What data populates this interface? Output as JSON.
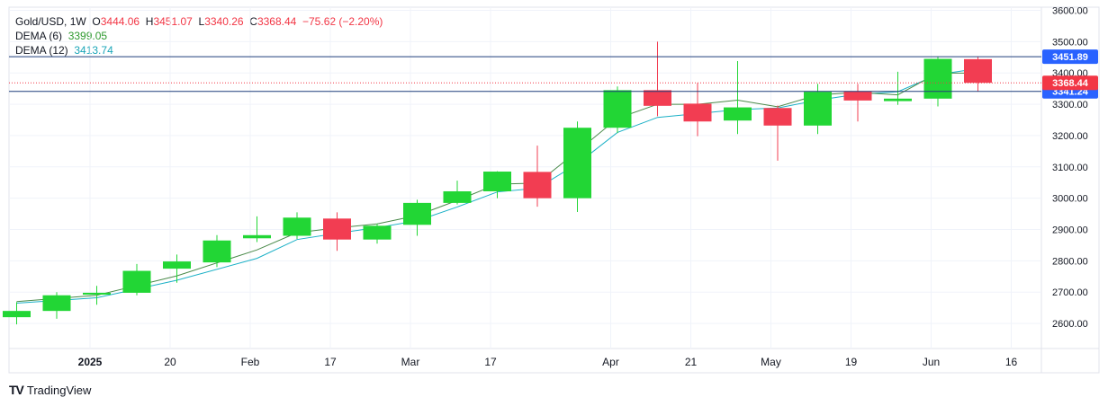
{
  "legend": {
    "symbol": "Gold/USD",
    "interval": "1W",
    "o_label": "O",
    "o_value": "3444.06",
    "h_label": "H",
    "h_value": "3451.07",
    "l_label": "L",
    "l_value": "3340.26",
    "c_label": "C",
    "c_value": "3368.44",
    "change": "−75.62 (−2.20%)",
    "dema6_label": "DEMA (6)",
    "dema6_value": "3399.05",
    "dema12_label": "DEMA (12)",
    "dema12_value": "3413.74"
  },
  "brand": {
    "name": "TradingView",
    "logo_text": "TV"
  },
  "colors": {
    "up": "#22d635",
    "down": "#f23d52",
    "dema6": "#4a8a4a",
    "dema12": "#1ab0c6",
    "hline": "#1e3f7a",
    "label_blue": "#2962ff",
    "label_red": "#f23645"
  },
  "chart_data": {
    "type": "candlestick",
    "y_axis": {
      "ticks": [
        "2600.00",
        "2700.00",
        "2800.00",
        "2900.00",
        "3000.00",
        "3100.00",
        "3200.00",
        "3300.00",
        "3400.00",
        "3500.00",
        "3600.00"
      ],
      "range": [
        2520,
        3610
      ]
    },
    "x_axis": {
      "ticks": [
        "2025",
        "20",
        "Feb",
        "17",
        "Mar",
        "17",
        "Apr",
        "21",
        "May",
        "19",
        "Jun",
        "16"
      ],
      "tick_weeks": [
        1,
        3,
        5,
        7,
        9,
        11,
        14,
        16,
        18,
        20,
        22,
        24
      ],
      "weeks_shown": [
        0,
        25.6
      ]
    },
    "candles": [
      {
        "week": 0,
        "o": 2620,
        "h": 2668,
        "l": 2597,
        "c": 2640
      },
      {
        "week": 1,
        "o": 2640,
        "h": 2700,
        "l": 2615,
        "c": 2690
      },
      {
        "week": 2,
        "o": 2692,
        "h": 2720,
        "l": 2660,
        "c": 2698
      },
      {
        "week": 3,
        "o": 2698,
        "h": 2790,
        "l": 2690,
        "c": 2768
      },
      {
        "week": 4,
        "o": 2775,
        "h": 2820,
        "l": 2730,
        "c": 2798
      },
      {
        "week": 5,
        "o": 2795,
        "h": 2882,
        "l": 2780,
        "c": 2865
      },
      {
        "week": 6,
        "o": 2872,
        "h": 2942,
        "l": 2860,
        "c": 2882
      },
      {
        "week": 7,
        "o": 2880,
        "h": 2955,
        "l": 2870,
        "c": 2938
      },
      {
        "week": 8,
        "o": 2935,
        "h": 2955,
        "l": 2832,
        "c": 2868
      },
      {
        "week": 9,
        "o": 2868,
        "h": 2918,
        "l": 2855,
        "c": 2912
      },
      {
        "week": 10,
        "o": 2915,
        "h": 2995,
        "l": 2880,
        "c": 2985
      },
      {
        "week": 11,
        "o": 2985,
        "h": 3056,
        "l": 2980,
        "c": 3022
      },
      {
        "week": 12,
        "o": 3022,
        "h": 3086,
        "l": 3000,
        "c": 3085
      },
      {
        "week": 13,
        "o": 3084,
        "h": 3168,
        "l": 2973,
        "c": 3000
      },
      {
        "week": 14,
        "o": 3000,
        "h": 3245,
        "l": 2956,
        "c": 3225
      },
      {
        "week": 15,
        "o": 3225,
        "h": 3357,
        "l": 3208,
        "c": 3345
      },
      {
        "week": 16,
        "o": 3345,
        "h": 3500,
        "l": 3262,
        "c": 3295
      },
      {
        "week": 17,
        "o": 3302,
        "h": 3368,
        "l": 3198,
        "c": 3245
      },
      {
        "week": 18,
        "o": 3248,
        "h": 3438,
        "l": 3205,
        "c": 3290
      },
      {
        "week": 19,
        "o": 3288,
        "h": 3296,
        "l": 3120,
        "c": 3232
      },
      {
        "week": 20,
        "o": 3232,
        "h": 3365,
        "l": 3205,
        "c": 3340
      },
      {
        "week": 21,
        "o": 3342,
        "h": 3365,
        "l": 3245,
        "c": 3312
      },
      {
        "week": 22,
        "o": 3310,
        "h": 3404,
        "l": 3298,
        "c": 3318
      },
      {
        "week": 23,
        "o": 3318,
        "h": 3452,
        "l": 3293,
        "c": 3445
      },
      {
        "week": 24,
        "o": 3444.06,
        "h": 3451.07,
        "l": 3340.26,
        "c": 3368.44
      }
    ],
    "dema6": [
      [
        0,
        2670
      ],
      [
        2,
        2690
      ],
      [
        4,
        2752
      ],
      [
        6,
        2835
      ],
      [
        7,
        2890
      ],
      [
        8,
        2905
      ],
      [
        9,
        2918
      ],
      [
        10,
        2945
      ],
      [
        11,
        2993
      ],
      [
        12,
        3045
      ],
      [
        13,
        3048
      ],
      [
        14,
        3150
      ],
      [
        15,
        3255
      ],
      [
        16,
        3300
      ],
      [
        17,
        3300
      ],
      [
        18,
        3313
      ],
      [
        19,
        3292
      ],
      [
        20,
        3330
      ],
      [
        21,
        3338
      ],
      [
        22,
        3330
      ],
      [
        23,
        3400
      ],
      [
        24,
        3399.05
      ]
    ],
    "dema12": [
      [
        0,
        2665
      ],
      [
        2,
        2682
      ],
      [
        4,
        2738
      ],
      [
        6,
        2808
      ],
      [
        7,
        2868
      ],
      [
        8,
        2888
      ],
      [
        9,
        2906
      ],
      [
        10,
        2928
      ],
      [
        11,
        2972
      ],
      [
        12,
        3020
      ],
      [
        13,
        3032
      ],
      [
        14,
        3110
      ],
      [
        15,
        3210
      ],
      [
        16,
        3258
      ],
      [
        17,
        3270
      ],
      [
        18,
        3283
      ],
      [
        19,
        3288
      ],
      [
        20,
        3313
      ],
      [
        21,
        3332
      ],
      [
        22,
        3340
      ],
      [
        23,
        3395
      ],
      [
        24,
        3413.74
      ]
    ],
    "horizontal_lines": [
      {
        "value": 3451.89,
        "label": "3451.89"
      },
      {
        "value": 3341.24,
        "label": "3341.24"
      }
    ],
    "last_price": {
      "value": 3368.44,
      "label": "3368.44"
    }
  }
}
